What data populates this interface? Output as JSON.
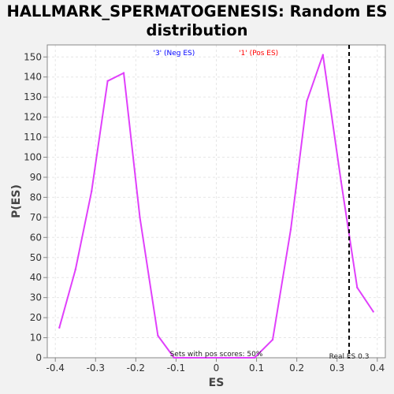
{
  "chart_data": {
    "type": "line",
    "title_line1": "HALLMARK_SPERMATOGENESIS: Random ES",
    "title_line2": "distribution",
    "xlabel": "ES",
    "ylabel": "P(ES)",
    "xlim": [
      -0.42,
      0.42
    ],
    "ylim": [
      0,
      156
    ],
    "x_ticks": [
      -0.4,
      -0.3,
      -0.2,
      -0.1,
      0,
      0.1,
      0.2,
      0.3,
      0.4
    ],
    "x_tick_labels": [
      "-0.4",
      "-0.3",
      "-0.2",
      "-0.1",
      "0",
      "0.1",
      "0.2",
      "0.3",
      "0.4"
    ],
    "y_ticks": [
      0,
      10,
      20,
      30,
      40,
      50,
      60,
      70,
      80,
      90,
      100,
      110,
      120,
      130,
      140,
      150
    ],
    "grid": true,
    "series": [
      {
        "color": "#e040fb",
        "x": [
          -0.39,
          -0.35,
          -0.31,
          -0.27,
          -0.23,
          -0.19,
          -0.145,
          -0.105,
          -0.065,
          -0.025,
          0.015,
          0.055,
          0.095,
          0.14,
          0.185,
          0.225,
          0.265,
          0.31,
          0.35,
          0.39
        ],
        "y": [
          15,
          44,
          83,
          138,
          142,
          70,
          11,
          0,
          0,
          0,
          0,
          0,
          0,
          9,
          64,
          128,
          151,
          88,
          35,
          23
        ]
      }
    ],
    "legend_neg": "'3' (Neg ES)",
    "legend_neg_color": "#0000ff",
    "legend_pos": "'1' (Pos ES)",
    "legend_pos_color": "#ff0000",
    "annotation_pos_scores": "Sets with pos scores: 50%",
    "real_es": 0.33,
    "real_es_label": "Real ES 0.3"
  }
}
